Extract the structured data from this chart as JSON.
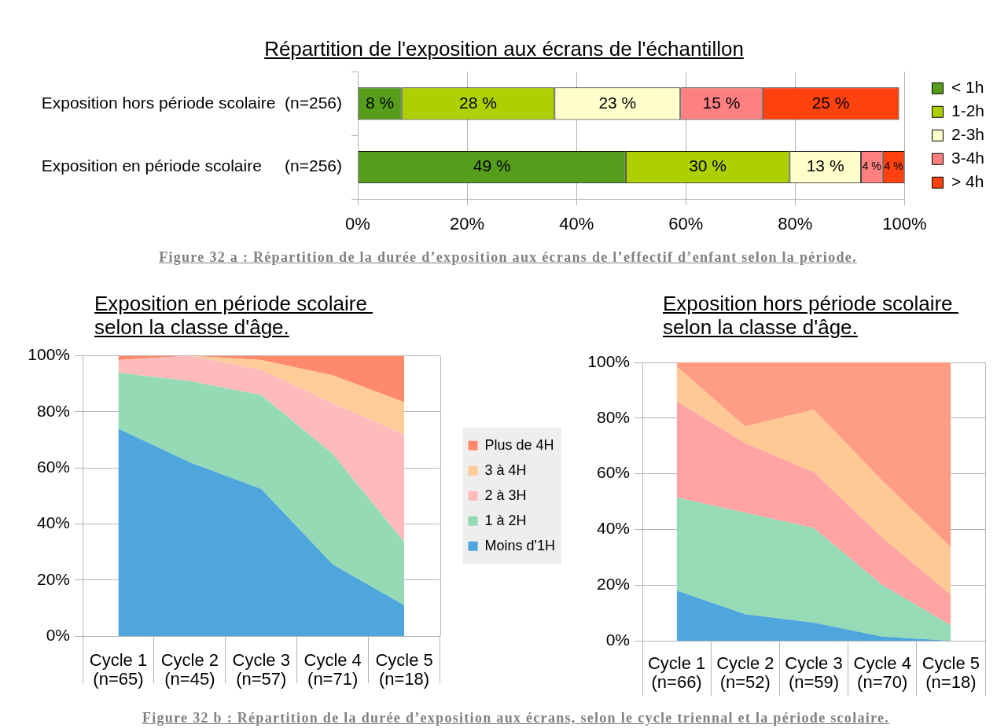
{
  "chart_data": [
    {
      "type": "bar",
      "title": "Répartition de l'exposition aux écrans de l'échantillon",
      "orientation": "horizontal",
      "stacked": true,
      "categories": [
        "Exposition hors période scolaire  (n=256)",
        "Exposition en période scolaire     (n=256)"
      ],
      "series": [
        {
          "name": "< 1h",
          "color": "#579d1c",
          "values": [
            8,
            49
          ],
          "value_labels": [
            "8 %",
            "49 %"
          ]
        },
        {
          "name": "1-2h",
          "color": "#aecf00",
          "values": [
            28,
            30
          ],
          "value_labels": [
            "28 %",
            "30 %"
          ]
        },
        {
          "name": "2-3h",
          "color": "#ffffcc",
          "values": [
            23,
            13
          ],
          "value_labels": [
            "23 %",
            "13 %"
          ]
        },
        {
          "name": "3-4h",
          "color": "#ff8080",
          "values": [
            15,
            4
          ],
          "value_labels": [
            "15 %",
            "4 %"
          ]
        },
        {
          "name": "> 4h",
          "color": "#ff420e",
          "values": [
            25,
            4
          ],
          "value_labels": [
            "25 %",
            "4 %"
          ]
        }
      ],
      "xlim": [
        0,
        100
      ],
      "xticks": [
        {
          "value": 0,
          "label": "0%"
        },
        {
          "value": 20,
          "label": "20%"
        },
        {
          "value": 40,
          "label": "40%"
        },
        {
          "value": 60,
          "label": "60%"
        },
        {
          "value": 80,
          "label": "80%"
        },
        {
          "value": 100,
          "label": "100%"
        }
      ],
      "grid": "x",
      "legend": "right",
      "annotations": [
        "Figure 32 a : Répartition de la durée d’exposition aux écrans de l’effectif d’enfant selon la période."
      ]
    },
    {
      "type": "area",
      "title": "Exposition en période scolaire \nselon la classe d'âge.",
      "stacked": true,
      "categories": [
        "Cycle 1\n(n=65)",
        "Cycle 2\n(n=45)",
        "Cycle 3\n(n=57)",
        "Cycle 4\n(n=71)",
        "Cycle 5\n(n=18)"
      ],
      "series": [
        {
          "name": "Moins d'1H",
          "color": "#4ea6dc",
          "values": [
            74,
            62,
            52.5,
            25.5,
            11
          ]
        },
        {
          "name": "1 à 2H",
          "color": "#94dbb5",
          "values": [
            20,
            29,
            33.5,
            39.5,
            22.5
          ]
        },
        {
          "name": "2 à 3H",
          "color": "#ffbbbb",
          "values": [
            4.5,
            9,
            9,
            18,
            38.5
          ]
        },
        {
          "name": "3 à 4H",
          "color": "#ffcc99",
          "values": [
            0,
            0,
            3.5,
            10,
            11.5
          ]
        },
        {
          "name": "Plus de 4H",
          "color": "#ff8a6b",
          "values": [
            1.5,
            0,
            1.5,
            7,
            16.5
          ]
        }
      ],
      "ylim": [
        0,
        100
      ],
      "yticks": [
        {
          "value": 0,
          "label": "0%"
        },
        {
          "value": 20,
          "label": "20%"
        },
        {
          "value": 40,
          "label": "40%"
        },
        {
          "value": 60,
          "label": "60%"
        },
        {
          "value": 80,
          "label": "80%"
        },
        {
          "value": 100,
          "label": "100%"
        }
      ],
      "grid": "y",
      "legend": "right"
    },
    {
      "type": "area",
      "title": "Exposition hors période scolaire \nselon la classe d'âge.",
      "stacked": true,
      "categories": [
        "Cycle 1\n(n=66)",
        "Cycle 2\n(n=52)",
        "Cycle 3\n(n=59)",
        "Cycle 4\n(n=70)",
        "Cycle 5\n(n=18)"
      ],
      "series": [
        {
          "color": "#4fa6dc",
          "values": [
            18,
            9.5,
            6.5,
            1.5,
            0
          ]
        },
        {
          "color": "#95dbb5",
          "values": [
            33.5,
            36.5,
            34,
            18.5,
            5.5
          ]
        },
        {
          "color": "#ffa3a3",
          "values": [
            34.5,
            25,
            20,
            17,
            11
          ]
        },
        {
          "color": "#ffc995",
          "values": [
            12.5,
            6,
            22.5,
            20.5,
            17
          ]
        },
        {
          "color": "#ff9c84",
          "values": [
            1.5,
            23,
            17,
            42.5,
            66.5
          ]
        }
      ],
      "ylim": [
        0,
        100
      ],
      "yticks": [
        {
          "value": 0,
          "label": "0%"
        },
        {
          "value": 20,
          "label": "20%"
        },
        {
          "value": 40,
          "label": "40%"
        },
        {
          "value": 60,
          "label": "60%"
        },
        {
          "value": 80,
          "label": "80%"
        },
        {
          "value": 100,
          "label": "100%"
        }
      ],
      "grid": "y",
      "annotations": [
        "Figure 32 b : Répartition de la durée d’exposition aux écrans, selon le cycle triennal et la période scolaire."
      ]
    }
  ]
}
